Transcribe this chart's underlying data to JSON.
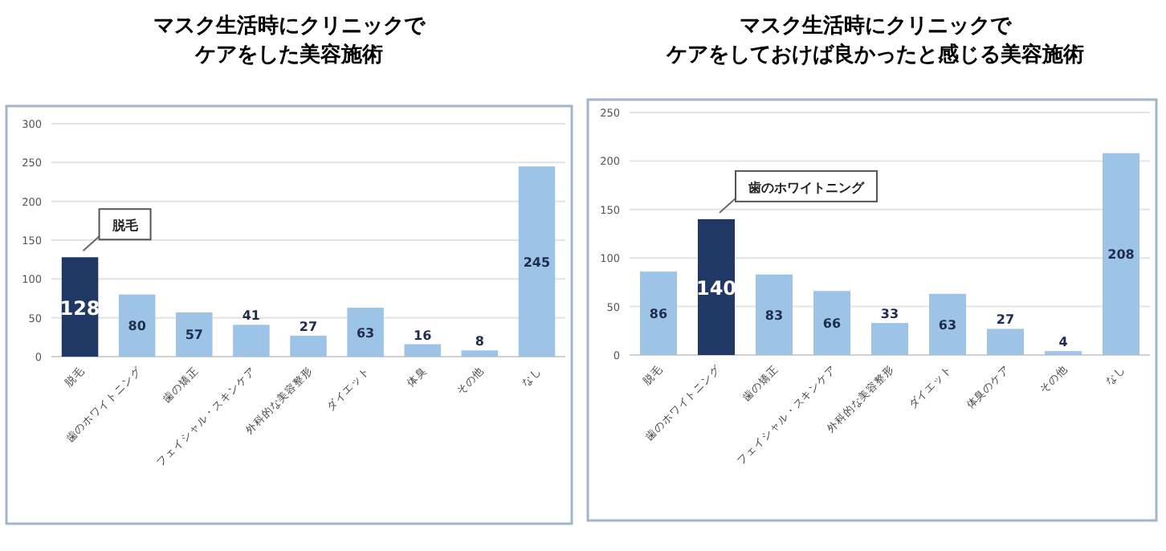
{
  "chart_data": [
    {
      "type": "bar",
      "title": "マスク生活時にクリニックで",
      "subtitle": "ケアをした美容施術",
      "categories": [
        "脱毛",
        "歯のホワイトニング",
        "歯の矯正",
        "フェイシャル・スキンケア",
        "外科的な美容整形",
        "ダイエット",
        "体臭",
        "その他",
        "なし"
      ],
      "values": [
        128,
        80,
        57,
        41,
        27,
        63,
        16,
        8,
        245
      ],
      "colors": [
        "#1f3864",
        "#9dc3e6",
        "#9dc3e6",
        "#9dc3e6",
        "#9dc3e6",
        "#9dc3e6",
        "#9dc3e6",
        "#9dc3e6",
        "#9dc3e6"
      ],
      "ylim": [
        0,
        300
      ],
      "yticks": [
        0,
        50,
        100,
        150,
        200,
        250,
        300
      ],
      "grid": "y",
      "data_labels": true,
      "annotations": [
        {
          "text": "脱毛",
          "x": "脱毛",
          "y": 128
        }
      ]
    },
    {
      "type": "bar",
      "title": "マスク生活時にクリニックで",
      "subtitle": "ケアをしておけば良かったと感じる美容施術",
      "categories": [
        "脱毛",
        "歯のホワイトニング",
        "歯の矯正",
        "フェイシャル・スキンケア",
        "外科的な美容整形",
        "ダイエット",
        "体臭のケア",
        "その他",
        "なし"
      ],
      "values": [
        86,
        140,
        83,
        66,
        33,
        63,
        27,
        4,
        208
      ],
      "colors": [
        "#9dc3e6",
        "#1f3864",
        "#9dc3e6",
        "#9dc3e6",
        "#9dc3e6",
        "#9dc3e6",
        "#9dc3e6",
        "#9dc3e6",
        "#9dc3e6"
      ],
      "ylim": [
        0,
        250
      ],
      "yticks": [
        0,
        50,
        100,
        150,
        200,
        250
      ],
      "grid": "y",
      "data_labels": true,
      "annotations": [
        {
          "text": "歯のホワイトニング",
          "x": "歯のホワイトニング",
          "y": 140
        }
      ]
    }
  ]
}
